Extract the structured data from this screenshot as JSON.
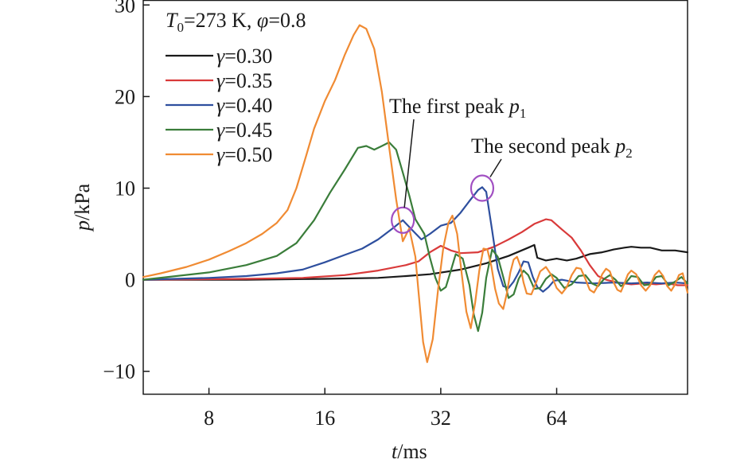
{
  "chart_data": {
    "type": "line",
    "xlabel": {
      "var": "t",
      "unit": "/ms"
    },
    "ylabel": {
      "var": "p",
      "unit": "/kPa"
    },
    "x_ticks": [
      "8",
      "16",
      "32",
      "64"
    ],
    "x_tick_values": [
      8,
      16,
      32,
      64
    ],
    "x_scale": "log2",
    "xlim": [
      5.4,
      140
    ],
    "y_ticks": [
      "−10",
      "0",
      "10",
      "20",
      "30"
    ],
    "y_tick_values": [
      -10,
      0,
      10,
      20,
      30
    ],
    "ylim": [
      -12.5,
      30.5
    ],
    "grid": false,
    "legend_position": "top-left",
    "condition": {
      "T": "T",
      "T_sub": "0",
      "T_value": "=273 K, ",
      "phi": "φ",
      "phi_value": "=0.8"
    },
    "series": [
      {
        "name": "γ=0.30",
        "sym": "γ",
        "value": "=0.30",
        "color": "#1a1a1a",
        "points": [
          [
            5.4,
            0
          ],
          [
            10,
            0
          ],
          [
            16,
            0.1
          ],
          [
            22,
            0.2
          ],
          [
            26,
            0.4
          ],
          [
            30,
            0.6
          ],
          [
            36,
            1.1
          ],
          [
            42,
            1.8
          ],
          [
            48,
            2.6
          ],
          [
            54,
            3.5
          ],
          [
            56,
            3.8
          ],
          [
            57,
            2.4
          ],
          [
            60,
            2.1
          ],
          [
            64,
            2.3
          ],
          [
            68,
            2.1
          ],
          [
            72,
            2.3
          ],
          [
            78,
            2.8
          ],
          [
            84,
            3.0
          ],
          [
            90,
            3.3
          ],
          [
            96,
            3.5
          ],
          [
            100,
            3.6
          ],
          [
            106,
            3.5
          ],
          [
            112,
            3.5
          ],
          [
            120,
            3.2
          ],
          [
            130,
            3.2
          ],
          [
            140,
            3.0
          ]
        ]
      },
      {
        "name": "γ=0.35",
        "sym": "γ",
        "value": "=0.35",
        "color": "#d93a3a",
        "points": [
          [
            5.4,
            0
          ],
          [
            10,
            0.1
          ],
          [
            14,
            0.2
          ],
          [
            18,
            0.5
          ],
          [
            22,
            1.0
          ],
          [
            26,
            1.6
          ],
          [
            28,
            2.0
          ],
          [
            30,
            3.0
          ],
          [
            32,
            3.7
          ],
          [
            34,
            3.2
          ],
          [
            36,
            2.9
          ],
          [
            40,
            3.0
          ],
          [
            44,
            3.6
          ],
          [
            48,
            4.4
          ],
          [
            52,
            5.2
          ],
          [
            56,
            6.1
          ],
          [
            60,
            6.6
          ],
          [
            62,
            6.5
          ],
          [
            66,
            5.5
          ],
          [
            70,
            4.6
          ],
          [
            74,
            3.2
          ],
          [
            78,
            1.6
          ],
          [
            82,
            0.4
          ],
          [
            86,
            0
          ],
          [
            92,
            -0.3
          ],
          [
            100,
            -0.5
          ],
          [
            108,
            -0.4
          ],
          [
            116,
            -0.5
          ],
          [
            124,
            -0.4
          ],
          [
            132,
            -0.6
          ],
          [
            140,
            -0.6
          ]
        ]
      },
      {
        "name": "γ=0.40",
        "sym": "γ",
        "value": "=0.40",
        "color": "#2e4f9e",
        "points": [
          [
            5.4,
            0
          ],
          [
            8,
            0.2
          ],
          [
            10,
            0.4
          ],
          [
            12,
            0.7
          ],
          [
            14,
            1.1
          ],
          [
            16,
            1.9
          ],
          [
            18,
            2.7
          ],
          [
            20,
            3.4
          ],
          [
            22,
            4.4
          ],
          [
            24,
            5.6
          ],
          [
            25.5,
            6.5
          ],
          [
            27,
            5.4
          ],
          [
            28.5,
            4.4
          ],
          [
            30,
            5.0
          ],
          [
            32,
            5.9
          ],
          [
            34,
            6.2
          ],
          [
            36,
            7.3
          ],
          [
            38,
            8.6
          ],
          [
            40,
            9.8
          ],
          [
            41,
            10.1
          ],
          [
            42,
            9.6
          ],
          [
            43.5,
            5.4
          ],
          [
            45,
            1.2
          ],
          [
            46.5,
            -0.7
          ],
          [
            48,
            -0.9
          ],
          [
            49.5,
            -0.2
          ],
          [
            51,
            0.8
          ],
          [
            52.5,
            2.0
          ],
          [
            54,
            1.9
          ],
          [
            55.5,
            0.3
          ],
          [
            57,
            -0.8
          ],
          [
            59,
            -1.3
          ],
          [
            61,
            -0.8
          ],
          [
            63,
            -0.1
          ],
          [
            66,
            0
          ],
          [
            72,
            -0.3
          ],
          [
            80,
            -0.4
          ],
          [
            90,
            -0.3
          ],
          [
            100,
            -0.4
          ],
          [
            110,
            -0.3
          ],
          [
            120,
            -0.4
          ],
          [
            130,
            -0.3
          ],
          [
            140,
            -0.4
          ]
        ]
      },
      {
        "name": "γ=0.45",
        "sym": "γ",
        "value": "=0.45",
        "color": "#3a7d3a",
        "points": [
          [
            5.4,
            0
          ],
          [
            8,
            0.8
          ],
          [
            10,
            1.6
          ],
          [
            12,
            2.6
          ],
          [
            13.5,
            4.0
          ],
          [
            15,
            6.5
          ],
          [
            16.5,
            9.5
          ],
          [
            18,
            12.0
          ],
          [
            19.5,
            14.4
          ],
          [
            20.5,
            14.6
          ],
          [
            21.5,
            14.2
          ],
          [
            22.5,
            14.6
          ],
          [
            23.5,
            15.0
          ],
          [
            24.5,
            14.2
          ],
          [
            25.5,
            11.7
          ],
          [
            26.5,
            9.2
          ],
          [
            27.5,
            6.6
          ],
          [
            29,
            5.0
          ],
          [
            30,
            2.4
          ],
          [
            31,
            0.2
          ],
          [
            32,
            -1.2
          ],
          [
            33,
            -0.8
          ],
          [
            34,
            1.0
          ],
          [
            35,
            2.8
          ],
          [
            36.5,
            2.3
          ],
          [
            38,
            -0.6
          ],
          [
            39,
            -3.8
          ],
          [
            40,
            -5.6
          ],
          [
            41,
            -3.6
          ],
          [
            42,
            0.2
          ],
          [
            43.5,
            3.3
          ],
          [
            45,
            2.5
          ],
          [
            46.5,
            0.3
          ],
          [
            48,
            -2.0
          ],
          [
            49.5,
            -1.6
          ],
          [
            51,
            0.1
          ],
          [
            52.5,
            1.0
          ],
          [
            54,
            0.5
          ],
          [
            56,
            -1.0
          ],
          [
            58,
            -0.9
          ],
          [
            60,
            0.1
          ],
          [
            62,
            0.6
          ],
          [
            64,
            0.2
          ],
          [
            67,
            -0.9
          ],
          [
            70,
            -0.5
          ],
          [
            73,
            0.4
          ],
          [
            76,
            0.5
          ],
          [
            79,
            -0.4
          ],
          [
            82,
            -0.7
          ],
          [
            85,
            0.1
          ],
          [
            88,
            0.5
          ],
          [
            91,
            0
          ],
          [
            94,
            -0.7
          ],
          [
            97,
            -0.3
          ],
          [
            100,
            0.4
          ],
          [
            104,
            0.3
          ],
          [
            108,
            -0.6
          ],
          [
            112,
            -0.5
          ],
          [
            116,
            0.3
          ],
          [
            120,
            0.4
          ],
          [
            125,
            -0.6
          ],
          [
            130,
            -0.2
          ],
          [
            135,
            0.3
          ],
          [
            140,
            -0.4
          ]
        ]
      },
      {
        "name": "γ=0.50",
        "sym": "γ",
        "value": "=0.50",
        "color": "#f08b33",
        "points": [
          [
            5.4,
            0.3
          ],
          [
            6,
            0.7
          ],
          [
            7,
            1.4
          ],
          [
            8,
            2.2
          ],
          [
            9,
            3.1
          ],
          [
            10,
            4.0
          ],
          [
            11,
            5.0
          ],
          [
            12,
            6.2
          ],
          [
            12.8,
            7.6
          ],
          [
            13.5,
            10.0
          ],
          [
            14.3,
            13.5
          ],
          [
            15,
            16.5
          ],
          [
            16,
            19.5
          ],
          [
            17,
            21.8
          ],
          [
            18,
            24.5
          ],
          [
            19,
            26.7
          ],
          [
            19.7,
            27.8
          ],
          [
            20.5,
            27.4
          ],
          [
            21.5,
            25.2
          ],
          [
            22.5,
            20.5
          ],
          [
            23.5,
            14.5
          ],
          [
            24.5,
            8.8
          ],
          [
            25.5,
            4.2
          ],
          [
            26.5,
            5.6
          ],
          [
            27.5,
            2.5
          ],
          [
            28,
            -1.2
          ],
          [
            28.8,
            -6.8
          ],
          [
            29.5,
            -9.0
          ],
          [
            30.5,
            -6.5
          ],
          [
            31.5,
            -1.0
          ],
          [
            32.5,
            3.5
          ],
          [
            33.5,
            6.2
          ],
          [
            34.3,
            7.0
          ],
          [
            35.3,
            5.0
          ],
          [
            36.3,
            0.5
          ],
          [
            37.3,
            -3.5
          ],
          [
            38.3,
            -5.3
          ],
          [
            39.3,
            -2.5
          ],
          [
            40.3,
            1.0
          ],
          [
            41.3,
            3.4
          ],
          [
            42.3,
            3.3
          ],
          [
            43.3,
            1.5
          ],
          [
            44.3,
            -1.0
          ],
          [
            45.3,
            -2.6
          ],
          [
            46.5,
            -3.2
          ],
          [
            47.5,
            -1.5
          ],
          [
            48.5,
            0.8
          ],
          [
            49.5,
            2.2
          ],
          [
            50.5,
            2.5
          ],
          [
            51.5,
            1.5
          ],
          [
            52.5,
            -0.3
          ],
          [
            53.5,
            -1.5
          ],
          [
            55,
            -1.6
          ],
          [
            56.5,
            -0.4
          ],
          [
            58,
            0.9
          ],
          [
            60,
            1.4
          ],
          [
            62,
            0.5
          ],
          [
            64,
            -0.9
          ],
          [
            66,
            -1.5
          ],
          [
            68,
            -0.8
          ],
          [
            70,
            0.5
          ],
          [
            72,
            1.3
          ],
          [
            74,
            1.2
          ],
          [
            76,
            0.1
          ],
          [
            78,
            -1.1
          ],
          [
            80,
            -1.4
          ],
          [
            82,
            -0.6
          ],
          [
            84,
            0.6
          ],
          [
            86,
            1.2
          ],
          [
            88,
            0.9
          ],
          [
            90,
            -0.3
          ],
          [
            92,
            -1.1
          ],
          [
            94,
            -1.3
          ],
          [
            96,
            -0.4
          ],
          [
            98,
            0.6
          ],
          [
            100,
            1.0
          ],
          [
            103,
            0.6
          ],
          [
            106,
            -0.6
          ],
          [
            109,
            -1.2
          ],
          [
            112,
            -0.6
          ],
          [
            115,
            0.5
          ],
          [
            118,
            1.0
          ],
          [
            121,
            0.4
          ],
          [
            124,
            -0.7
          ],
          [
            127,
            -1.2
          ],
          [
            130,
            -0.5
          ],
          [
            133,
            0.5
          ],
          [
            136,
            0.7
          ],
          [
            140,
            -1.4
          ]
        ]
      }
    ],
    "annotations": [
      {
        "id": "first-peak",
        "prefix": "The first peak ",
        "var": "p",
        "sub": "1",
        "target": [
          25.5,
          6.5
        ]
      },
      {
        "id": "second-peak",
        "prefix": "The second peak ",
        "var": "p",
        "sub": "2",
        "target": [
          41,
          10.0
        ]
      }
    ],
    "colors": {
      "axis": "#1a1a1a",
      "marker_circle": "#a14fc2"
    }
  }
}
